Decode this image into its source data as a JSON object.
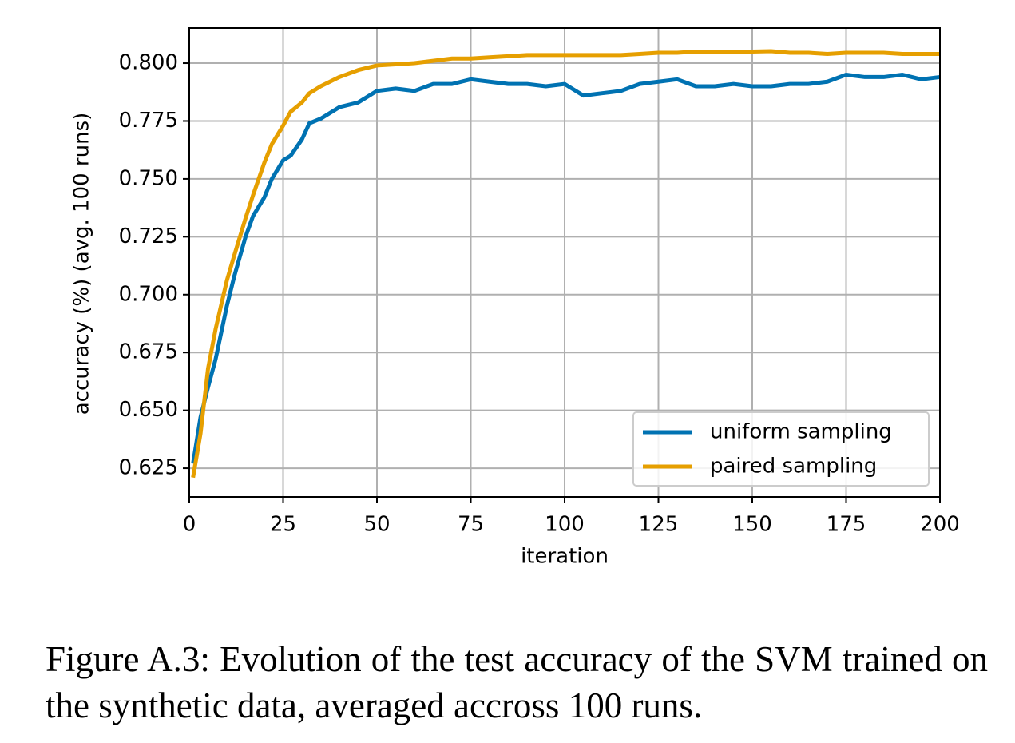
{
  "chart_data": {
    "type": "line",
    "xlabel": "iteration",
    "ylabel": "accuracy (%) (avg. 100 runs)",
    "x": [
      1,
      3,
      5,
      7,
      10,
      12,
      15,
      17,
      20,
      22,
      25,
      27,
      30,
      32,
      35,
      40,
      45,
      50,
      55,
      60,
      65,
      70,
      75,
      80,
      85,
      90,
      95,
      100,
      105,
      110,
      115,
      120,
      125,
      130,
      135,
      140,
      145,
      150,
      155,
      160,
      165,
      170,
      175,
      180,
      185,
      190,
      195,
      200
    ],
    "series": [
      {
        "name": "uniform sampling",
        "color": "#0072b2",
        "values": [
          0.627,
          0.647,
          0.66,
          0.672,
          0.695,
          0.708,
          0.725,
          0.734,
          0.742,
          0.75,
          0.758,
          0.76,
          0.767,
          0.774,
          0.776,
          0.781,
          0.783,
          0.788,
          0.789,
          0.788,
          0.791,
          0.791,
          0.793,
          0.792,
          0.791,
          0.791,
          0.79,
          0.791,
          0.786,
          0.787,
          0.788,
          0.791,
          0.792,
          0.793,
          0.79,
          0.79,
          0.791,
          0.79,
          0.79,
          0.791,
          0.791,
          0.792,
          0.795,
          0.794,
          0.794,
          0.795,
          0.793,
          0.794
        ]
      },
      {
        "name": "paired sampling",
        "color": "#e69f00",
        "values": [
          0.621,
          0.64,
          0.668,
          0.685,
          0.706,
          0.717,
          0.733,
          0.743,
          0.757,
          0.765,
          0.773,
          0.779,
          0.783,
          0.787,
          0.79,
          0.794,
          0.797,
          0.799,
          0.7995,
          0.8,
          0.801,
          0.802,
          0.802,
          0.8025,
          0.803,
          0.8035,
          0.8035,
          0.8035,
          0.8035,
          0.8035,
          0.8035,
          0.804,
          0.8045,
          0.8045,
          0.805,
          0.805,
          0.805,
          0.805,
          0.8052,
          0.8045,
          0.8045,
          0.804,
          0.8045,
          0.8045,
          0.8045,
          0.804,
          0.804,
          0.804
        ]
      }
    ],
    "xlim": [
      0,
      200
    ],
    "xticks": [
      0,
      25,
      50,
      75,
      100,
      125,
      150,
      175,
      200
    ],
    "ylim": [
      0.6126,
      0.8152
    ],
    "yticks": [
      {
        "value": 0.625,
        "label": "0.625"
      },
      {
        "value": 0.65,
        "label": "0.650"
      },
      {
        "value": 0.675,
        "label": "0.675"
      },
      {
        "value": 0.7,
        "label": "0.700"
      },
      {
        "value": 0.725,
        "label": "0.725"
      },
      {
        "value": 0.75,
        "label": "0.750"
      },
      {
        "value": 0.775,
        "label": "0.775"
      },
      {
        "value": 0.8,
        "label": "0.800"
      }
    ],
    "grid": true,
    "legend": "lower right"
  },
  "caption": "Figure A.3: Evolution of the test accuracy of the SVM trained on the synthetic data, averaged accross 100 runs."
}
